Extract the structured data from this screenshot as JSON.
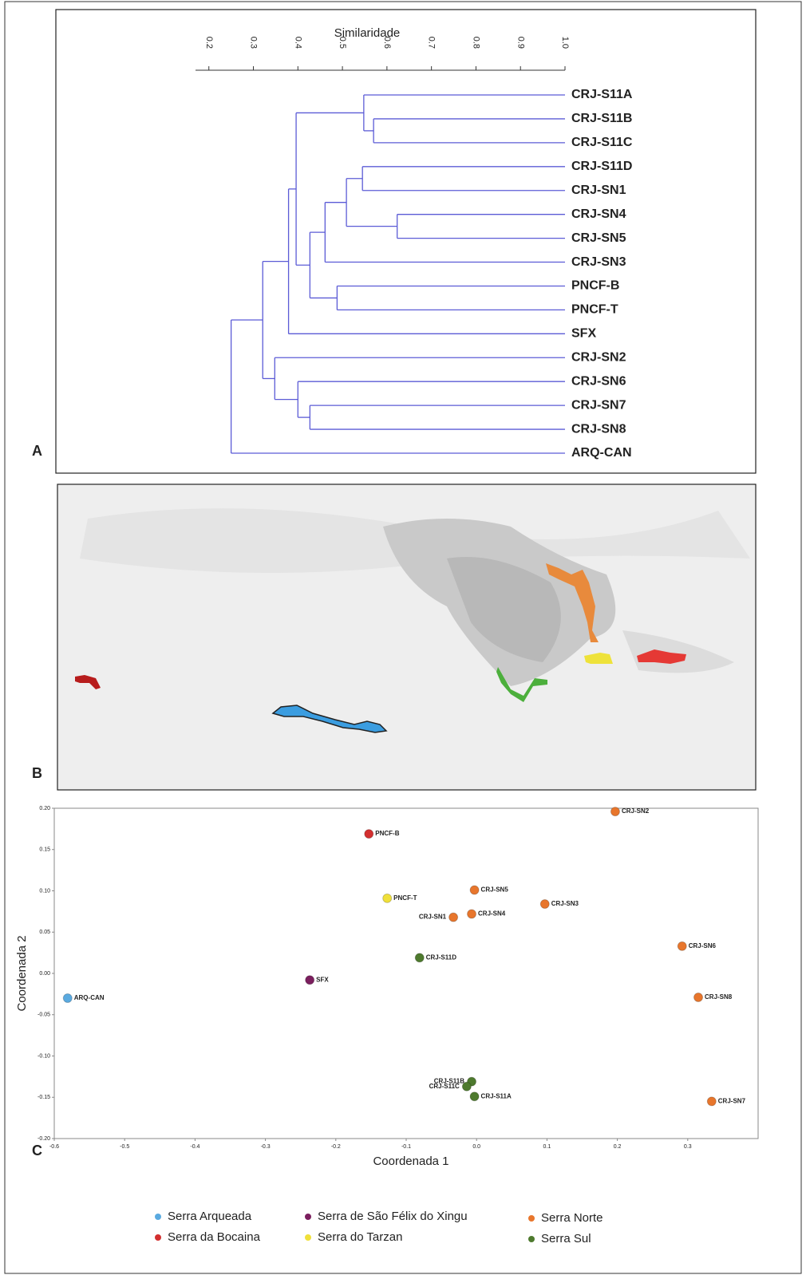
{
  "panel_labels": [
    "A",
    "B",
    "C"
  ],
  "chart_data": [
    {
      "type": "dendrogram",
      "xlabel": "Similaridade",
      "line_color": "#5b5bd6",
      "xlim": [
        0.17,
        1.0
      ],
      "xticks": [
        0.2,
        0.3,
        0.4,
        0.5,
        0.6,
        0.7,
        0.8,
        0.9,
        {
          "value": 1,
          "label": "1.0"
        }
      ],
      "leaves": [
        {
          "name": "CRJ-S11A",
          "color": "#2e7d32"
        },
        {
          "name": "CRJ-S11B",
          "color": "#2e7d32"
        },
        {
          "name": "CRJ-S11C",
          "color": "#2e7d32"
        },
        {
          "name": "CRJ-S11D",
          "color": "#2e7d32"
        },
        {
          "name": "CRJ-SN1",
          "color": "#c8651a"
        },
        {
          "name": "CRJ-SN4",
          "color": "#c8651a"
        },
        {
          "name": "CRJ-SN5",
          "color": "#c8651a"
        },
        {
          "name": "CRJ-SN3",
          "color": "#c8651a"
        },
        {
          "name": "PNCF-B",
          "color": "#e3262b"
        },
        {
          "name": "PNCF-T",
          "color": "#d4cc1c"
        },
        {
          "name": "SFX",
          "color": "#6b1c5e"
        },
        {
          "name": "CRJ-SN2",
          "color": "#c8651a"
        },
        {
          "name": "CRJ-SN6",
          "color": "#c8651a"
        },
        {
          "name": "CRJ-SN7",
          "color": "#c8651a"
        },
        {
          "name": "CRJ-SN8",
          "color": "#c8651a"
        },
        {
          "name": "ARQ-CAN",
          "color": "#1ba1e2"
        }
      ],
      "merges": [
        {
          "children": [
            1,
            2
          ],
          "similarity": 0.57
        },
        {
          "children": [
            0,
            16
          ],
          "similarity": 0.548
        },
        {
          "children": [
            5,
            6
          ],
          "similarity": 0.623
        },
        {
          "children": [
            3,
            4
          ],
          "similarity": 0.545
        },
        {
          "children": [
            19,
            18
          ],
          "similarity": 0.509
        },
        {
          "children": [
            20,
            7
          ],
          "similarity": 0.461
        },
        {
          "children": [
            8,
            9
          ],
          "similarity": 0.488
        },
        {
          "children": [
            21,
            22
          ],
          "similarity": 0.427
        },
        {
          "children": [
            17,
            23
          ],
          "similarity": 0.396
        },
        {
          "children": [
            24,
            10
          ],
          "similarity": 0.379
        },
        {
          "children": [
            13,
            14
          ],
          "similarity": 0.427
        },
        {
          "children": [
            12,
            26
          ],
          "similarity": 0.4
        },
        {
          "children": [
            11,
            27
          ],
          "similarity": 0.348
        },
        {
          "children": [
            25,
            28
          ],
          "similarity": 0.321
        },
        {
          "children": [
            29,
            15
          ],
          "similarity": 0.25
        }
      ]
    },
    {
      "type": "scatter",
      "xlabel": "Coordenada 1",
      "ylabel": "Coordenada 2",
      "xlim": [
        -0.6,
        0.4
      ],
      "ylim": [
        -0.2,
        0.2
      ],
      "xticks": [
        -0.6,
        -0.5,
        -0.4,
        -0.3,
        -0.2,
        -0.1,
        {
          "value": 0,
          "label": "0.0"
        },
        0.1,
        0.2,
        0.3
      ],
      "yticks": [
        {
          "value": 0.2,
          "label": "0.20"
        },
        {
          "value": 0.15,
          "label": "0.15"
        },
        {
          "value": 0.1,
          "label": "0.10"
        },
        {
          "value": 0.05,
          "label": "0.05"
        },
        {
          "value": 0,
          "label": "0.00"
        },
        {
          "value": -0.05,
          "label": "-0.05"
        },
        {
          "value": -0.1,
          "label": "-0.10"
        },
        {
          "value": -0.15,
          "label": "-0.15"
        },
        {
          "value": -0.2,
          "label": "-0.20"
        }
      ],
      "series": [
        {
          "name": "Serra Arqueada",
          "color": "#5aaae0",
          "x": [
            -0.581
          ],
          "y": [
            -0.03
          ],
          "labels": [
            "ARQ-CAN"
          ]
        },
        {
          "name": "Serra da Bocaina",
          "color": "#d32f2f",
          "x": [
            -0.153
          ],
          "y": [
            0.169
          ],
          "labels": [
            "PNCF-B"
          ]
        },
        {
          "name": "Serra de São Félix do Xingu",
          "color": "#7b1f5e",
          "x": [
            -0.237
          ],
          "y": [
            -0.008
          ],
          "labels": [
            "SFX"
          ]
        },
        {
          "name": "Serra do Tarzan",
          "color": "#f0e03a",
          "x": [
            -0.127
          ],
          "y": [
            0.091
          ],
          "labels": [
            "PNCF-T"
          ]
        },
        {
          "name": "Serra Norte",
          "color": "#e8762c",
          "x": [
            0.197,
            -0.003,
            0.097,
            -0.007,
            -0.033,
            0.292,
            0.315,
            0.334
          ],
          "y": [
            0.196,
            0.101,
            0.084,
            0.072,
            0.068,
            0.033,
            -0.029,
            -0.155
          ],
          "labels": [
            "CRJ-SN2",
            "CRJ-SN5",
            "CRJ-SN3",
            "CRJ-SN4",
            "CRJ-SN1",
            "CRJ-SN6",
            "CRJ-SN8",
            "CRJ-SN7"
          ]
        },
        {
          "name": "Serra Sul",
          "color": "#4e7a2e",
          "x": [
            -0.081,
            -0.007,
            -0.014,
            -0.003
          ],
          "y": [
            0.019,
            -0.131,
            -0.137,
            -0.149
          ],
          "labels": [
            "CRJ-S11D",
            "CRJ-S11B",
            "CRJ-S11C",
            "CRJ-S11A"
          ]
        }
      ]
    }
  ]
}
